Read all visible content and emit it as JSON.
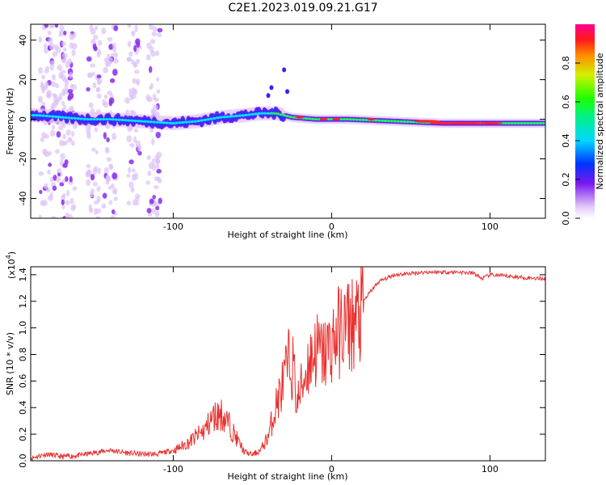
{
  "title": "C2E1.2023.019.09.21.G17",
  "chart_data": [
    {
      "type": "heatmap",
      "xlabel": "Height of straight line (km)",
      "ylabel": "Frequency (Hz)",
      "xlim": [
        -190,
        135
      ],
      "ylim": [
        -50,
        48
      ],
      "xticks": [
        -100,
        0,
        100
      ],
      "yticks": [
        -40,
        -20,
        0,
        20,
        40
      ],
      "colorbar": {
        "label": "Normalized spectral amplitude",
        "range": [
          0,
          1
        ],
        "ticks": [
          "0.0",
          "0.2",
          "0.4",
          "0.6",
          "0.8"
        ]
      },
      "ridge": [
        {
          "x": -185,
          "y": 2
        },
        {
          "x": -170,
          "y": 1
        },
        {
          "x": -155,
          "y": 0
        },
        {
          "x": -140,
          "y": 0
        },
        {
          "x": -120,
          "y": -1
        },
        {
          "x": -100,
          "y": -2
        },
        {
          "x": -85,
          "y": -1
        },
        {
          "x": -70,
          "y": 1
        },
        {
          "x": -55,
          "y": 2
        },
        {
          "x": -45,
          "y": 3
        },
        {
          "x": -35,
          "y": 3
        },
        {
          "x": -25,
          "y": 1
        },
        {
          "x": -10,
          "y": 0
        },
        {
          "x": 10,
          "y": 0
        },
        {
          "x": 40,
          "y": -1
        },
        {
          "x": 70,
          "y": -2
        },
        {
          "x": 100,
          "y": -2
        },
        {
          "x": 135,
          "y": -2
        }
      ]
    },
    {
      "type": "line",
      "xlabel": "Height of straight line (km)",
      "ylabel": "SNR (10 * v/v)",
      "y_multiplier": "(x10",
      "y_multiplier_exp": "4",
      "y_multiplier_close": ")",
      "xlim": [
        -190,
        135
      ],
      "ylim": [
        0,
        1.46
      ],
      "xticks": [
        -100,
        0,
        100
      ],
      "yticks": [
        "0.0",
        "0.2",
        "0.4",
        "0.6",
        "0.8",
        "1.0",
        "1.2",
        "1.4"
      ],
      "color": "#e8312f",
      "series": [
        {
          "values": [
            [
              -190,
              0.02
            ],
            [
              -180,
              0.05
            ],
            [
              -170,
              0.03
            ],
            [
              -160,
              0.04
            ],
            [
              -150,
              0.06
            ],
            [
              -140,
              0.08
            ],
            [
              -130,
              0.06
            ],
            [
              -120,
              0.05
            ],
            [
              -110,
              0.05
            ],
            [
              -100,
              0.08
            ],
            [
              -90,
              0.15
            ],
            [
              -80,
              0.25
            ],
            [
              -75,
              0.35
            ],
            [
              -70,
              0.38
            ],
            [
              -65,
              0.3
            ],
            [
              -60,
              0.18
            ],
            [
              -55,
              0.07
            ],
            [
              -50,
              0.05
            ],
            [
              -45,
              0.08
            ],
            [
              -40,
              0.2
            ],
            [
              -35,
              0.45
            ],
            [
              -30,
              0.65
            ],
            [
              -27,
              0.8
            ],
            [
              -24,
              0.75
            ],
            [
              -22,
              0.45
            ],
            [
              -20,
              0.55
            ],
            [
              -15,
              0.78
            ],
            [
              -10,
              0.9
            ],
            [
              -5,
              0.85
            ],
            [
              0,
              0.95
            ],
            [
              5,
              1.05
            ],
            [
              10,
              1.1
            ],
            [
              15,
              1.12
            ],
            [
              20,
              1.2
            ],
            [
              25,
              1.28
            ],
            [
              30,
              1.35
            ],
            [
              40,
              1.4
            ],
            [
              50,
              1.41
            ],
            [
              60,
              1.42
            ],
            [
              70,
              1.42
            ],
            [
              80,
              1.42
            ],
            [
              90,
              1.41
            ],
            [
              95,
              1.37
            ],
            [
              100,
              1.4
            ],
            [
              110,
              1.39
            ],
            [
              120,
              1.38
            ],
            [
              135,
              1.37
            ]
          ]
        }
      ]
    }
  ]
}
